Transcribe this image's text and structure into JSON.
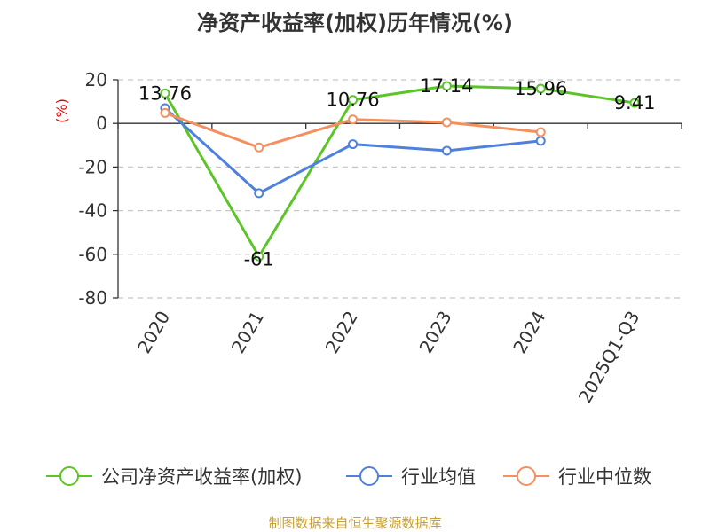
{
  "chart_data": {
    "type": "line",
    "title": "净资产收益率(加权)历年情况(%)",
    "unit": "(%)",
    "categories": [
      "2020",
      "2021",
      "2022",
      "2023",
      "2024",
      "2025Q1-Q3"
    ],
    "ylim": [
      -80,
      20
    ],
    "yticks": [
      20,
      0,
      -20,
      -40,
      -60,
      -80
    ],
    "grid": true,
    "legend_position": "bottom",
    "series": [
      {
        "name": "公司净资产收益率(加权)",
        "color": "#5bc528",
        "values": [
          13.76,
          -61,
          10.76,
          17.14,
          15.96,
          9.41
        ],
        "labels": [
          "13.76",
          "-61",
          "10.76",
          "17.14",
          "15.96",
          "9.41"
        ]
      },
      {
        "name": "行业均值",
        "color": "#4f80dc",
        "values": [
          7,
          -32,
          -9.5,
          -12.5,
          -8,
          null
        ]
      },
      {
        "name": "行业中位数",
        "color": "#f4905e",
        "values": [
          4.8,
          -11,
          1.8,
          0.5,
          -4,
          null
        ]
      }
    ]
  },
  "source_text": "制图数据来自恒生聚源数据库"
}
